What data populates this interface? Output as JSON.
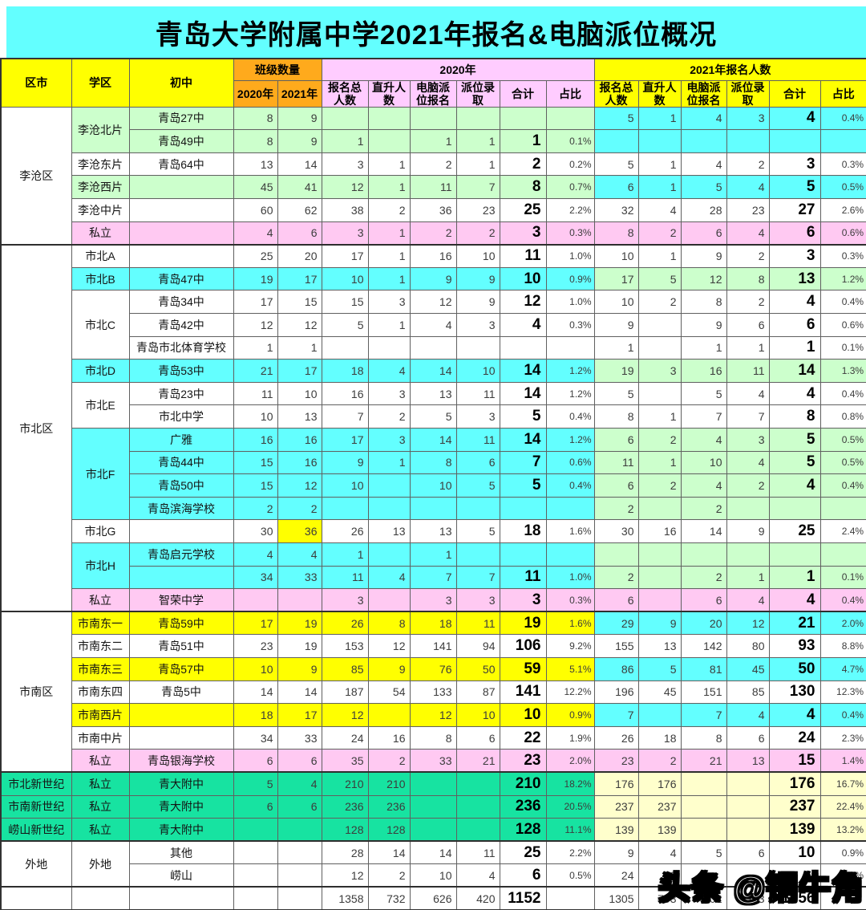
{
  "title": "青岛大学附属中学2021年报名&电脑派位概况",
  "watermark": "头条 @铜牛角",
  "colors": {
    "title_bg": "#63FFFF",
    "header_yellow": "#FFFF00",
    "header_orange": "#FFAA1C",
    "header_pink": "#FFCCFF",
    "row_green": "#CCFFCC",
    "row_cyan": "#63FFFF",
    "row_pink": "#FFC9F2",
    "row_yellow": "#FFFF00",
    "row_spring_green": "#17E3A1",
    "row_cream": "#FFFFCC"
  },
  "header": {
    "district": "区市",
    "zone": "学区",
    "school": "初中",
    "class_group": "班级数量",
    "class_2020": "2020年",
    "class_2021": "2021年",
    "group_2020": "2020年",
    "group_2021": "2021年报名人数",
    "sub": [
      "报名总人数",
      "直升人数",
      "电脑派位报名",
      "派位录取",
      "合计",
      "占比"
    ]
  },
  "rows": [
    {
      "d": {
        "t": "李沧区",
        "s": 6
      },
      "z": {
        "t": "李沧北片",
        "s": 2
      },
      "lbg": "g",
      "rbg": "c",
      "school": "青岛27中",
      "cls": [
        "8",
        "9"
      ],
      "y20": [
        "",
        "",
        "",
        "",
        "",
        ""
      ],
      "y21": [
        "5",
        "1",
        "4",
        "3",
        "4",
        "0.4%"
      ]
    },
    {
      "lbg": "g",
      "rbg": "c",
      "school": "青岛49中",
      "cls": [
        "8",
        "9"
      ],
      "y20": [
        "1",
        "",
        "1",
        "1",
        "1",
        "0.1%"
      ],
      "y21": [
        "",
        "",
        "",
        "",
        "",
        ""
      ]
    },
    {
      "z": {
        "t": "李沧东片",
        "s": 1
      },
      "lbg": "w",
      "rbg": "w",
      "school": "青岛64中",
      "cls": [
        "13",
        "14"
      ],
      "y20": [
        "3",
        "1",
        "2",
        "1",
        "2",
        "0.2%"
      ],
      "y21": [
        "5",
        "1",
        "4",
        "2",
        "3",
        "0.3%"
      ]
    },
    {
      "z": {
        "t": "李沧西片",
        "s": 1
      },
      "lbg": "g",
      "rbg": "c",
      "school": "",
      "cls": [
        "45",
        "41"
      ],
      "y20": [
        "12",
        "1",
        "11",
        "7",
        "8",
        "0.7%"
      ],
      "y21": [
        "6",
        "1",
        "5",
        "4",
        "5",
        "0.5%"
      ]
    },
    {
      "z": {
        "t": "李沧中片",
        "s": 1
      },
      "lbg": "w",
      "rbg": "w",
      "school": "",
      "cls": [
        "60",
        "62"
      ],
      "y20": [
        "38",
        "2",
        "36",
        "23",
        "25",
        "2.2%"
      ],
      "y21": [
        "32",
        "4",
        "28",
        "23",
        "27",
        "2.6%"
      ]
    },
    {
      "z": {
        "t": "私立",
        "s": 1
      },
      "lbg": "p",
      "rbg": "p",
      "school": "",
      "cls": [
        "4",
        "6"
      ],
      "y20": [
        "3",
        "1",
        "2",
        "2",
        "3",
        "0.3%"
      ],
      "y21": [
        "8",
        "2",
        "6",
        "4",
        "6",
        "0.6%"
      ]
    },
    {
      "sect": true,
      "d": {
        "t": "市北区",
        "s": 16
      },
      "z": {
        "t": "市北A",
        "s": 1
      },
      "lbg": "w",
      "rbg": "w",
      "school": "",
      "cls": [
        "25",
        "20"
      ],
      "y20": [
        "17",
        "1",
        "16",
        "10",
        "11",
        "1.0%"
      ],
      "y21": [
        "10",
        "1",
        "9",
        "2",
        "3",
        "0.3%"
      ]
    },
    {
      "z": {
        "t": "市北B",
        "s": 1
      },
      "lbg": "c",
      "rbg": "g",
      "school": "青岛47中",
      "cls": [
        "19",
        "17"
      ],
      "y20": [
        "10",
        "1",
        "9",
        "9",
        "10",
        "0.9%"
      ],
      "y21": [
        "17",
        "5",
        "12",
        "8",
        "13",
        "1.2%"
      ]
    },
    {
      "z": {
        "t": "市北C",
        "s": 3
      },
      "lbg": "w",
      "rbg": "w",
      "school": "青岛34中",
      "cls": [
        "17",
        "15"
      ],
      "y20": [
        "15",
        "3",
        "12",
        "9",
        "12",
        "1.0%"
      ],
      "y21": [
        "10",
        "2",
        "8",
        "2",
        "4",
        "0.4%"
      ]
    },
    {
      "lbg": "w",
      "rbg": "w",
      "school": "青岛42中",
      "cls": [
        "12",
        "12"
      ],
      "y20": [
        "5",
        "1",
        "4",
        "3",
        "4",
        "0.3%"
      ],
      "y21": [
        "9",
        "",
        "9",
        "6",
        "6",
        "0.6%"
      ]
    },
    {
      "lbg": "w",
      "rbg": "w",
      "school": "青岛市北体育学校",
      "cls": [
        "1",
        "1"
      ],
      "y20": [
        "",
        "",
        "",
        "",
        "",
        ""
      ],
      "y21": [
        "1",
        "",
        "1",
        "1",
        "1",
        "0.1%"
      ]
    },
    {
      "z": {
        "t": "市北D",
        "s": 1
      },
      "lbg": "c",
      "rbg": "g",
      "school": "青岛53中",
      "cls": [
        "21",
        "17"
      ],
      "y20": [
        "18",
        "4",
        "14",
        "10",
        "14",
        "1.2%"
      ],
      "y21": [
        "19",
        "3",
        "16",
        "11",
        "14",
        "1.3%"
      ]
    },
    {
      "z": {
        "t": "市北E",
        "s": 2
      },
      "lbg": "w",
      "rbg": "w",
      "school": "青岛23中",
      "cls": [
        "11",
        "10"
      ],
      "y20": [
        "16",
        "3",
        "13",
        "11",
        "14",
        "1.2%"
      ],
      "y21": [
        "5",
        "",
        "5",
        "4",
        "4",
        "0.4%"
      ]
    },
    {
      "lbg": "w",
      "rbg": "w",
      "school": "市北中学",
      "cls": [
        "10",
        "13"
      ],
      "y20": [
        "7",
        "2",
        "5",
        "3",
        "5",
        "0.4%"
      ],
      "y21": [
        "8",
        "1",
        "7",
        "7",
        "8",
        "0.8%"
      ]
    },
    {
      "z": {
        "t": "市北F",
        "s": 4
      },
      "lbg": "c",
      "rbg": "g",
      "school": "广雅",
      "cls": [
        "16",
        "16"
      ],
      "y20": [
        "17",
        "3",
        "14",
        "11",
        "14",
        "1.2%"
      ],
      "y21": [
        "6",
        "2",
        "4",
        "3",
        "5",
        "0.5%"
      ]
    },
    {
      "lbg": "c",
      "rbg": "g",
      "school": "青岛44中",
      "cls": [
        "15",
        "16"
      ],
      "y20": [
        "9",
        "1",
        "8",
        "6",
        "7",
        "0.6%"
      ],
      "y21": [
        "11",
        "1",
        "10",
        "4",
        "5",
        "0.5%"
      ]
    },
    {
      "lbg": "c",
      "rbg": "g",
      "school": "青岛50中",
      "cls": [
        "15",
        "12"
      ],
      "y20": [
        "10",
        "",
        "10",
        "5",
        "5",
        "0.4%"
      ],
      "y21": [
        "6",
        "2",
        "4",
        "2",
        "4",
        "0.4%"
      ]
    },
    {
      "lbg": "c",
      "rbg": "g",
      "school": "青岛滨海学校",
      "cls": [
        "2",
        "2"
      ],
      "y20": [
        "",
        "",
        "",
        "",
        "",
        ""
      ],
      "y21": [
        "2",
        "",
        "2",
        "",
        "",
        ""
      ]
    },
    {
      "z": {
        "t": "市北G",
        "s": 1
      },
      "lbg": "w",
      "rbg": "w",
      "school": "",
      "cls": [
        "30",
        "36"
      ],
      "cls1bg": "y",
      "y20": [
        "26",
        "13",
        "13",
        "5",
        "18",
        "1.6%"
      ],
      "y21": [
        "30",
        "16",
        "14",
        "9",
        "25",
        "2.4%"
      ]
    },
    {
      "z": {
        "t": "市北H",
        "s": 2
      },
      "lbg": "c",
      "rbg": "g",
      "school": "青岛启元学校",
      "cls": [
        "4",
        "4"
      ],
      "y20": [
        "1",
        "",
        "1",
        "",
        "",
        ""
      ],
      "y21": [
        "",
        "",
        "",
        "",
        "",
        ""
      ]
    },
    {
      "lbg": "c",
      "rbg": "g",
      "school": "",
      "cls": [
        "34",
        "33"
      ],
      "y20": [
        "11",
        "4",
        "7",
        "7",
        "11",
        "1.0%"
      ],
      "y21": [
        "2",
        "",
        "2",
        "1",
        "1",
        "0.1%"
      ]
    },
    {
      "z": {
        "t": "私立",
        "s": 1
      },
      "lbg": "p",
      "rbg": "p",
      "school": "智荣中学",
      "cls": [
        "",
        ""
      ],
      "y20": [
        "3",
        "",
        "3",
        "3",
        "3",
        "0.3%"
      ],
      "y21": [
        "6",
        "",
        "6",
        "4",
        "4",
        "0.4%"
      ]
    },
    {
      "sect": true,
      "d": {
        "t": "市南区",
        "s": 7
      },
      "z": {
        "t": "市南东一",
        "s": 1
      },
      "lbg": "y",
      "rbg": "c",
      "school": "青岛59中",
      "cls": [
        "17",
        "19"
      ],
      "y20": [
        "26",
        "8",
        "18",
        "11",
        "19",
        "1.6%"
      ],
      "y21": [
        "29",
        "9",
        "20",
        "12",
        "21",
        "2.0%"
      ]
    },
    {
      "z": {
        "t": "市南东二",
        "s": 1
      },
      "lbg": "w",
      "rbg": "w",
      "school": "青岛51中",
      "cls": [
        "23",
        "19"
      ],
      "y20": [
        "153",
        "12",
        "141",
        "94",
        "106",
        "9.2%"
      ],
      "y21": [
        "155",
        "13",
        "142",
        "80",
        "93",
        "8.8%"
      ]
    },
    {
      "z": {
        "t": "市南东三",
        "s": 1
      },
      "lbg": "y",
      "rbg": "c",
      "school": "青岛57中",
      "cls": [
        "10",
        "9"
      ],
      "y20": [
        "85",
        "9",
        "76",
        "50",
        "59",
        "5.1%"
      ],
      "y21": [
        "86",
        "5",
        "81",
        "45",
        "50",
        "4.7%"
      ]
    },
    {
      "z": {
        "t": "市南东四",
        "s": 1
      },
      "lbg": "w",
      "rbg": "w",
      "school": "青岛5中",
      "cls": [
        "14",
        "14"
      ],
      "y20": [
        "187",
        "54",
        "133",
        "87",
        "141",
        "12.2%"
      ],
      "y21": [
        "196",
        "45",
        "151",
        "85",
        "130",
        "12.3%"
      ]
    },
    {
      "z": {
        "t": "市南西片",
        "s": 1
      },
      "lbg": "y",
      "rbg": "c",
      "school": "",
      "cls": [
        "18",
        "17"
      ],
      "y20": [
        "12",
        "",
        "12",
        "10",
        "10",
        "0.9%"
      ],
      "y21": [
        "7",
        "",
        "7",
        "4",
        "4",
        "0.4%"
      ]
    },
    {
      "z": {
        "t": "市南中片",
        "s": 1
      },
      "lbg": "w",
      "rbg": "w",
      "school": "",
      "cls": [
        "34",
        "33"
      ],
      "y20": [
        "24",
        "16",
        "8",
        "6",
        "22",
        "1.9%"
      ],
      "y21": [
        "26",
        "18",
        "8",
        "6",
        "24",
        "2.3%"
      ]
    },
    {
      "z": {
        "t": "私立",
        "s": 1
      },
      "lbg": "p",
      "rbg": "p",
      "school": "青岛银海学校",
      "cls": [
        "6",
        "6"
      ],
      "y20": [
        "35",
        "2",
        "33",
        "21",
        "23",
        "2.0%"
      ],
      "y21": [
        "23",
        "2",
        "21",
        "13",
        "15",
        "1.4%"
      ]
    },
    {
      "sect": true,
      "d": {
        "t": "市北新世纪",
        "s": 1,
        "bg": "s"
      },
      "z": {
        "t": "私立",
        "s": 1
      },
      "lbg": "s",
      "rbg": "cr",
      "school": "青大附中",
      "cls": [
        "5",
        "4"
      ],
      "y20": [
        "210",
        "210",
        "",
        "",
        "210",
        "18.2%"
      ],
      "y21": [
        "176",
        "176",
        "",
        "",
        "176",
        "16.7%"
      ]
    },
    {
      "d": {
        "t": "市南新世纪",
        "s": 1,
        "bg": "s"
      },
      "z": {
        "t": "私立",
        "s": 1
      },
      "lbg": "s",
      "rbg": "cr",
      "school": "青大附中",
      "cls": [
        "6",
        "6"
      ],
      "y20": [
        "236",
        "236",
        "",
        "",
        "236",
        "20.5%"
      ],
      "y21": [
        "237",
        "237",
        "",
        "",
        "237",
        "22.4%"
      ]
    },
    {
      "d": {
        "t": "崂山新世纪",
        "s": 1,
        "bg": "s"
      },
      "z": {
        "t": "私立",
        "s": 1
      },
      "lbg": "s",
      "rbg": "cr",
      "school": "青大附中",
      "cls": [
        "",
        ""
      ],
      "y20": [
        "128",
        "128",
        "",
        "",
        "128",
        "11.1%"
      ],
      "y21": [
        "139",
        "139",
        "",
        "",
        "139",
        "13.2%"
      ]
    },
    {
      "sect": true,
      "d": {
        "t": "外地",
        "s": 2
      },
      "z": {
        "t": "外地",
        "s": 2
      },
      "lbg": "w",
      "rbg": "w",
      "school": "其他",
      "cls": [
        "",
        ""
      ],
      "y20": [
        "28",
        "14",
        "14",
        "11",
        "25",
        "2.2%"
      ],
      "y21": [
        "9",
        "4",
        "5",
        "6",
        "10",
        "0.9%"
      ]
    },
    {
      "lbg": "w",
      "rbg": "w",
      "school": "崂山",
      "cls": [
        "",
        ""
      ],
      "y20": [
        "12",
        "2",
        "10",
        "4",
        "6",
        "0.5%"
      ],
      "y21": [
        "24",
        "13",
        "",
        "",
        "",
        "1.4%"
      ]
    },
    {
      "sect": true,
      "d": {
        "t": "",
        "s": 1
      },
      "z": {
        "t": "",
        "s": 1
      },
      "lbg": "w",
      "rbg": "w",
      "school": "",
      "cls": [
        "",
        ""
      ],
      "y20": [
        "1358",
        "732",
        "626",
        "420",
        "1152",
        ""
      ],
      "y21": [
        "1305",
        "703",
        "602",
        "353",
        "1056",
        ""
      ]
    }
  ]
}
